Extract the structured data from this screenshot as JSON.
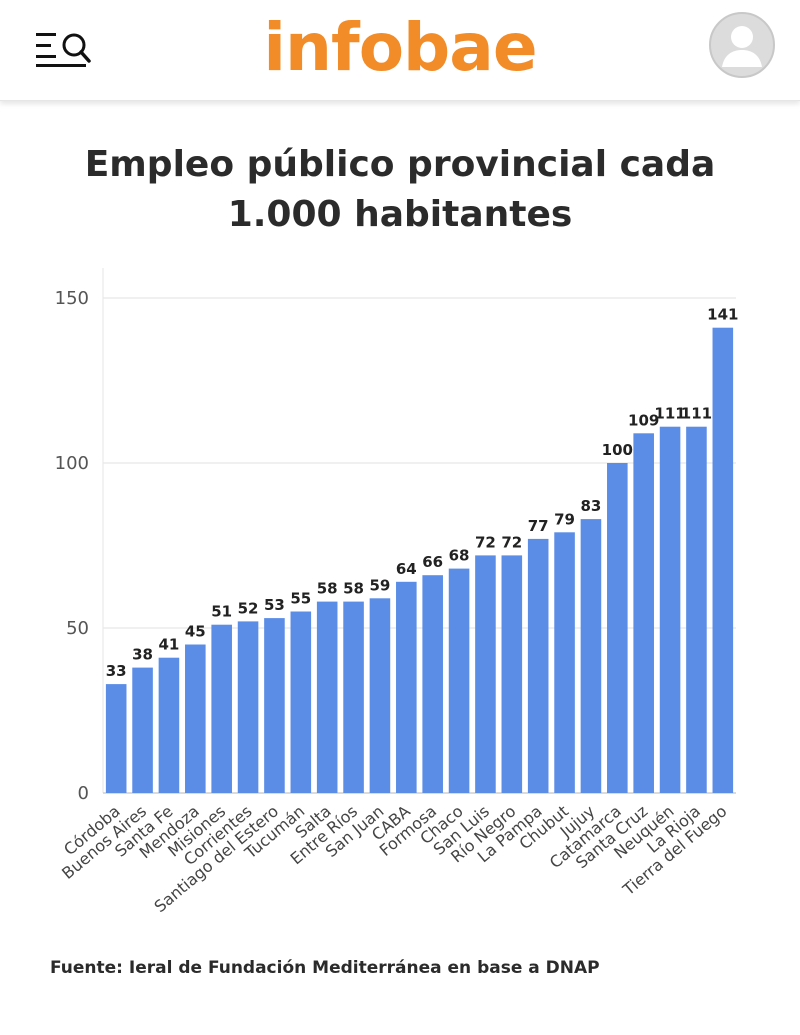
{
  "header": {
    "logo_text": "infobae",
    "logo_color": "#f28c28",
    "menu_icon": "menu-search-icon",
    "avatar_icon": "user-avatar-icon"
  },
  "title": "Empleo público provincial cada 1.000 habitantes",
  "source": "Fuente: Ieral de Fundación Mediterránea en base a DNAP",
  "chart_data": {
    "type": "bar",
    "bar_color": "#5b8de6",
    "categories": [
      "Córdoba",
      "Buenos Aires",
      "Santa Fe",
      "Mendoza",
      "Misiones",
      "Corrientes",
      "Santiago del Estero",
      "Tucumán",
      "Salta",
      "Entre Ríos",
      "San Juan",
      "CABA",
      "Formosa",
      "Chaco",
      "San Luis",
      "Río Negro",
      "La Pampa",
      "Chubut",
      "Jujuy",
      "Catamarca",
      "Santa Cruz",
      "Neuquén",
      "La Rioja",
      "Tierra del Fuego"
    ],
    "values": [
      33,
      38,
      41,
      45,
      51,
      52,
      53,
      55,
      58,
      58,
      59,
      64,
      66,
      68,
      72,
      72,
      77,
      79,
      83,
      100,
      109,
      111,
      111,
      141
    ],
    "data_labels": [
      "33",
      "38",
      "41",
      "45",
      "51",
      "52",
      "53",
      "55",
      "58",
      "58",
      "59",
      "64",
      "66",
      "68",
      "72",
      "72",
      "77",
      "79",
      "83",
      "100",
      "109",
      "111",
      "111",
      "141"
    ],
    "yticks": [
      0,
      50,
      100,
      150
    ],
    "ytick_labels": [
      "0",
      "50",
      "100",
      "150"
    ],
    "ylim": [
      0,
      150
    ],
    "grid": true
  }
}
